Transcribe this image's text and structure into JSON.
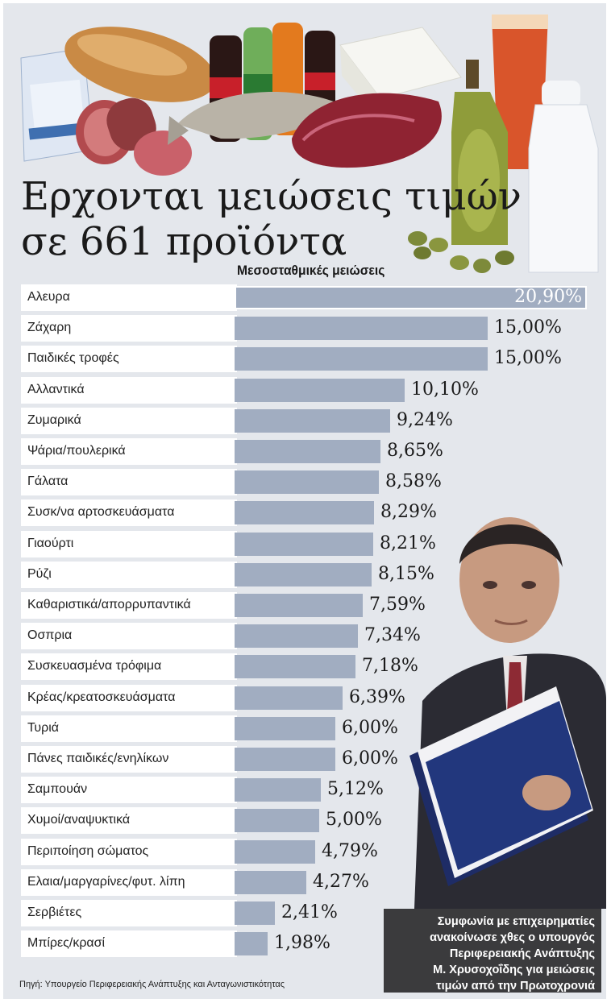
{
  "headline_line1": "Ερχονται μειώσεις τιμών",
  "headline_line2": "σε 661 προϊόντα",
  "chart_data": {
    "type": "bar",
    "orientation": "horizontal",
    "title": "Ερχονται μειώσεις τιμών σε 661 προϊόντα",
    "subtitle": "Μεσοσταθμικές μειώσεις",
    "unit": "%",
    "xlim": [
      0,
      20.9
    ],
    "categories": [
      "Αλευρα",
      "Ζάχαρη",
      "Παιδικές τροφές",
      "Αλλαντικά",
      "Ζυμαρικά",
      "Ψάρια/πουλερικά",
      "Γάλατα",
      "Συσκ/να αρτοσκευάσματα",
      "Γιαούρτι",
      "Ρύζι",
      "Καθαριστικά/απορρυπαντικά",
      "Οσπρια",
      "Συσκευασμένα τρόφιμα",
      "Κρέας/κρεατοσκευάσματα",
      "Τυριά",
      "Πάνες παιδικές/ενηλίκων",
      "Σαμπουάν",
      "Χυμοί/αναψυκτικά",
      "Περιποίηση σώματος",
      "Ελαια/μαργαρίνες/φυτ. λίπη",
      "Σερβιέτες",
      "Μπίρες/κρασί"
    ],
    "values": [
      20.9,
      15.0,
      15.0,
      10.1,
      9.24,
      8.65,
      8.58,
      8.29,
      8.21,
      8.15,
      7.59,
      7.34,
      7.18,
      6.39,
      6.0,
      6.0,
      5.12,
      5.0,
      4.79,
      4.27,
      2.41,
      1.98
    ],
    "value_labels": [
      "20,90%",
      "15,00%",
      "15,00%",
      "10,10%",
      "9,24%",
      "8,65%",
      "8,58%",
      "8,29%",
      "8,21%",
      "8,15%",
      "7,59%",
      "7,34%",
      "7,18%",
      "6,39%",
      "6,00%",
      "6,00%",
      "5,12%",
      "5,00%",
      "4,79%",
      "4,27%",
      "2,41%",
      "1,98%"
    ]
  },
  "source": "Πηγή: Υπουργείο Περιφερειακής Ανάπτυξης και Ανταγωνιστικότητας",
  "caption_lines": [
    "Συμφωνία με επιχειρηματίες",
    "ανακοίνωσε χθες ο υπουργός",
    "Περιφερειακής Ανάπτυξης",
    "Μ. Χρυσοχοΐδης για μειώσεις",
    "τιμών από την Πρωτοχρονιά"
  ],
  "colors": {
    "background": "#e4e7ec",
    "bar": "#a1adc1",
    "caption_bg": "#3b3b3d"
  }
}
